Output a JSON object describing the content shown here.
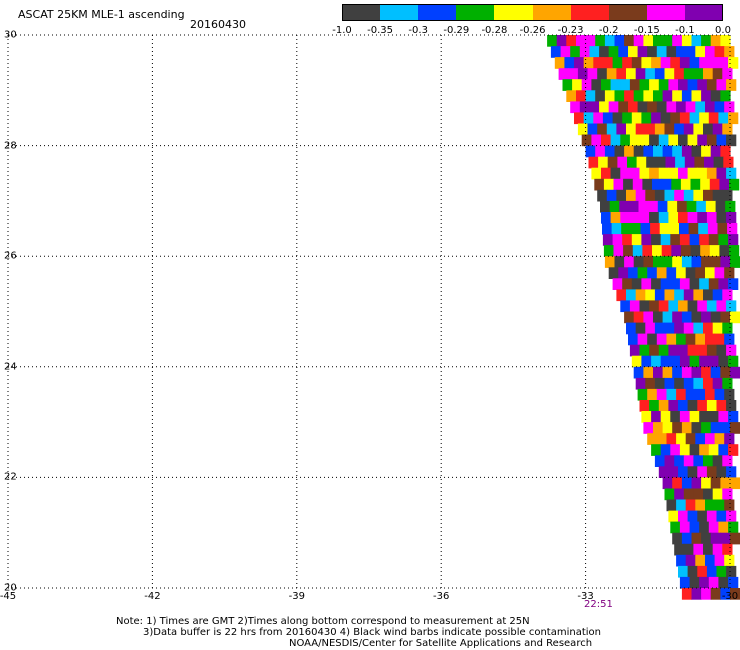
{
  "header": {
    "title": "ASCAT 25KM MLE-1 ascending",
    "date": "20160430"
  },
  "colorbar": {
    "labels": [
      "-1.0",
      "-0.35",
      "-0.3",
      "-0.29",
      "-0.28",
      "-0.26",
      "-0.23",
      "-0.2",
      "-0.15",
      "-0.1",
      "0.0"
    ],
    "colors": [
      "#404040",
      "#00bfff",
      "#0040ff",
      "#00b000",
      "#ffff00",
      "#ffa500",
      "#ff2020",
      "#7a3b1c",
      "#ff00ff",
      "#8000b0"
    ]
  },
  "axes": {
    "x_ticks": [
      "-45",
      "-42",
      "-39",
      "-36",
      "-33",
      "-30"
    ],
    "y_ticks": [
      "30",
      "28",
      "26",
      "24",
      "22",
      "20"
    ],
    "x_range": [
      -45,
      -30
    ],
    "y_range": [
      20,
      30
    ]
  },
  "time_label": "22:51",
  "notes": {
    "line1": "Note: 1) Times are GMT 2)Times along bottom correspond to measurement at 25N",
    "line2": "3)Data buffer is 22 hrs from 20160430 4) Black wind barbs indicate possible contamination",
    "line3": "NOAA/NESDIS/Center for Satellite Applications and Research"
  },
  "swath": {
    "left_edge_lon_at_lat": [
      [
        30,
        -33.8
      ],
      [
        29,
        -33.4
      ],
      [
        28,
        -33.0
      ],
      [
        27,
        -32.7
      ],
      [
        26,
        -32.6
      ],
      [
        25,
        -32.2
      ],
      [
        24,
        -32.0
      ],
      [
        23,
        -31.8
      ],
      [
        22,
        -31.4
      ],
      [
        21,
        -31.2
      ],
      [
        20,
        -31.0
      ]
    ],
    "right_edge_lon": -30.0,
    "cell_deg": 0.2
  }
}
